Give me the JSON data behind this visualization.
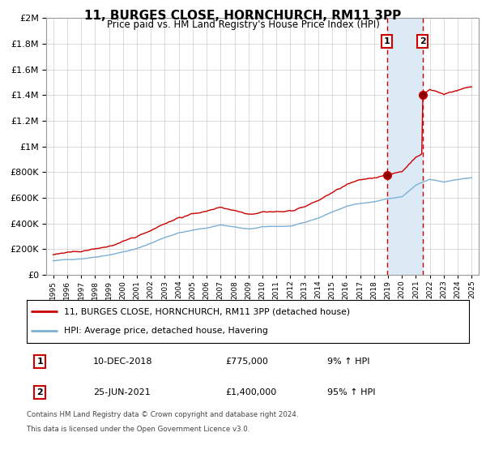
{
  "title": "11, BURGES CLOSE, HORNCHURCH, RM11 3PP",
  "subtitle": "Price paid vs. HM Land Registry's House Price Index (HPI)",
  "legend_line1": "11, BURGES CLOSE, HORNCHURCH, RM11 3PP (detached house)",
  "legend_line2": "HPI: Average price, detached house, Havering",
  "footer1": "Contains HM Land Registry data © Crown copyright and database right 2024.",
  "footer2": "This data is licensed under the Open Government Licence v3.0.",
  "transaction1_date": "10-DEC-2018",
  "transaction1_price": "£775,000",
  "transaction1_hpi": "9% ↑ HPI",
  "transaction2_date": "25-JUN-2021",
  "transaction2_price": "£1,400,000",
  "transaction2_hpi": "95% ↑ HPI",
  "red_line_color": "#cc0000",
  "blue_line_color": "#7bafd4",
  "marker1_x": 2018.92,
  "marker2_x": 2021.48,
  "marker1_y": 775000,
  "marker2_y": 1400000,
  "shaded_color": "#dceaf5",
  "ylim": [
    0,
    2000000
  ],
  "xlim": [
    1994.5,
    2025.5
  ]
}
